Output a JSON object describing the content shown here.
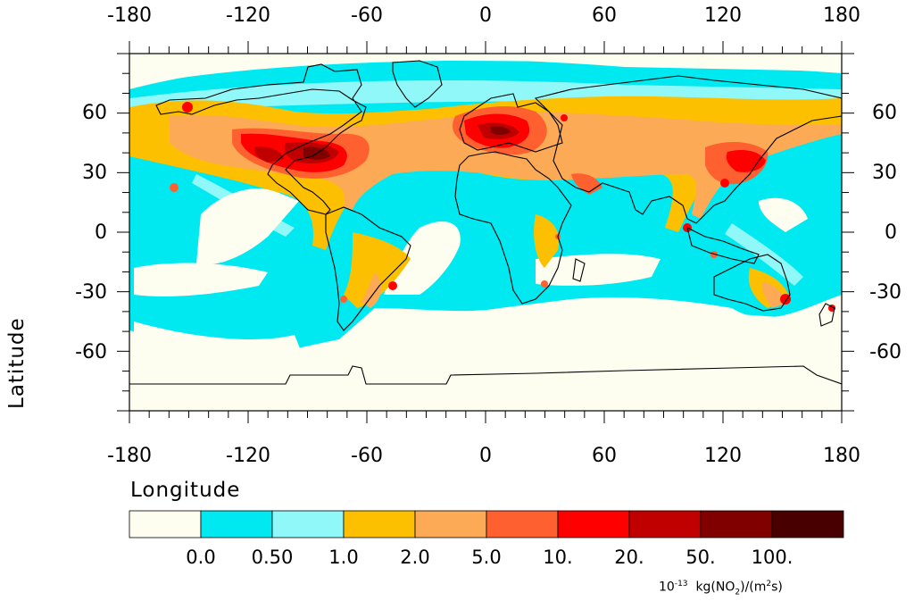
{
  "map": {
    "x_axis": {
      "ticks": [
        "-180",
        "-120",
        "-60",
        "0",
        "60",
        "120",
        "180"
      ],
      "title": "Longitude"
    },
    "y_axis": {
      "ticks": [
        "60",
        "30",
        "0",
        "-30",
        "-60"
      ],
      "title": "Latitude"
    }
  },
  "colorbar": {
    "levels": [
      "0.0",
      "0.50",
      "1.0",
      "2.0",
      "5.0",
      "10.",
      "20.",
      "50.",
      "100."
    ],
    "colors": [
      "#fdfdf0",
      "#00e8f0",
      "#90f8f8",
      "#fcc000",
      "#fcaa55",
      "#ff6030",
      "#ff0000",
      "#c00000",
      "#800000",
      "#480000"
    ],
    "units": {
      "prefix": "10",
      "exponent": "-13",
      "text": "kg(NO",
      "sub": "2",
      "mid": ")/(m",
      "sup": "2",
      "end": "s)"
    }
  }
}
